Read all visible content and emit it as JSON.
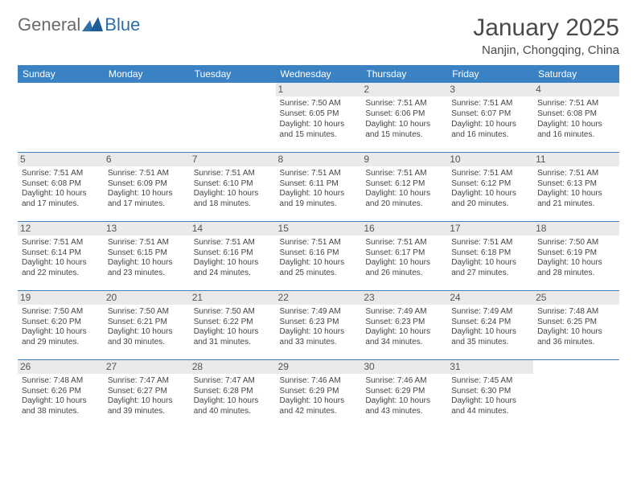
{
  "logo": {
    "general": "General",
    "blue": "Blue"
  },
  "title": "January 2025",
  "location": "Nanjin, Chongqing, China",
  "colors": {
    "header_bg": "#3a82c4",
    "header_text": "#ffffff",
    "daynum_bg": "#eaeaea",
    "row_border": "#3a82c4",
    "logo_blue": "#2f6fa8",
    "logo_gray": "#6b6b6b"
  },
  "weekdays": [
    "Sunday",
    "Monday",
    "Tuesday",
    "Wednesday",
    "Thursday",
    "Friday",
    "Saturday"
  ],
  "weeks": [
    [
      {
        "day": "",
        "sunrise": "",
        "sunset": "",
        "daylight": ""
      },
      {
        "day": "",
        "sunrise": "",
        "sunset": "",
        "daylight": ""
      },
      {
        "day": "",
        "sunrise": "",
        "sunset": "",
        "daylight": ""
      },
      {
        "day": "1",
        "sunrise": "Sunrise: 7:50 AM",
        "sunset": "Sunset: 6:05 PM",
        "daylight": "Daylight: 10 hours and 15 minutes."
      },
      {
        "day": "2",
        "sunrise": "Sunrise: 7:51 AM",
        "sunset": "Sunset: 6:06 PM",
        "daylight": "Daylight: 10 hours and 15 minutes."
      },
      {
        "day": "3",
        "sunrise": "Sunrise: 7:51 AM",
        "sunset": "Sunset: 6:07 PM",
        "daylight": "Daylight: 10 hours and 16 minutes."
      },
      {
        "day": "4",
        "sunrise": "Sunrise: 7:51 AM",
        "sunset": "Sunset: 6:08 PM",
        "daylight": "Daylight: 10 hours and 16 minutes."
      }
    ],
    [
      {
        "day": "5",
        "sunrise": "Sunrise: 7:51 AM",
        "sunset": "Sunset: 6:08 PM",
        "daylight": "Daylight: 10 hours and 17 minutes."
      },
      {
        "day": "6",
        "sunrise": "Sunrise: 7:51 AM",
        "sunset": "Sunset: 6:09 PM",
        "daylight": "Daylight: 10 hours and 17 minutes."
      },
      {
        "day": "7",
        "sunrise": "Sunrise: 7:51 AM",
        "sunset": "Sunset: 6:10 PM",
        "daylight": "Daylight: 10 hours and 18 minutes."
      },
      {
        "day": "8",
        "sunrise": "Sunrise: 7:51 AM",
        "sunset": "Sunset: 6:11 PM",
        "daylight": "Daylight: 10 hours and 19 minutes."
      },
      {
        "day": "9",
        "sunrise": "Sunrise: 7:51 AM",
        "sunset": "Sunset: 6:12 PM",
        "daylight": "Daylight: 10 hours and 20 minutes."
      },
      {
        "day": "10",
        "sunrise": "Sunrise: 7:51 AM",
        "sunset": "Sunset: 6:12 PM",
        "daylight": "Daylight: 10 hours and 20 minutes."
      },
      {
        "day": "11",
        "sunrise": "Sunrise: 7:51 AM",
        "sunset": "Sunset: 6:13 PM",
        "daylight": "Daylight: 10 hours and 21 minutes."
      }
    ],
    [
      {
        "day": "12",
        "sunrise": "Sunrise: 7:51 AM",
        "sunset": "Sunset: 6:14 PM",
        "daylight": "Daylight: 10 hours and 22 minutes."
      },
      {
        "day": "13",
        "sunrise": "Sunrise: 7:51 AM",
        "sunset": "Sunset: 6:15 PM",
        "daylight": "Daylight: 10 hours and 23 minutes."
      },
      {
        "day": "14",
        "sunrise": "Sunrise: 7:51 AM",
        "sunset": "Sunset: 6:16 PM",
        "daylight": "Daylight: 10 hours and 24 minutes."
      },
      {
        "day": "15",
        "sunrise": "Sunrise: 7:51 AM",
        "sunset": "Sunset: 6:16 PM",
        "daylight": "Daylight: 10 hours and 25 minutes."
      },
      {
        "day": "16",
        "sunrise": "Sunrise: 7:51 AM",
        "sunset": "Sunset: 6:17 PM",
        "daylight": "Daylight: 10 hours and 26 minutes."
      },
      {
        "day": "17",
        "sunrise": "Sunrise: 7:51 AM",
        "sunset": "Sunset: 6:18 PM",
        "daylight": "Daylight: 10 hours and 27 minutes."
      },
      {
        "day": "18",
        "sunrise": "Sunrise: 7:50 AM",
        "sunset": "Sunset: 6:19 PM",
        "daylight": "Daylight: 10 hours and 28 minutes."
      }
    ],
    [
      {
        "day": "19",
        "sunrise": "Sunrise: 7:50 AM",
        "sunset": "Sunset: 6:20 PM",
        "daylight": "Daylight: 10 hours and 29 minutes."
      },
      {
        "day": "20",
        "sunrise": "Sunrise: 7:50 AM",
        "sunset": "Sunset: 6:21 PM",
        "daylight": "Daylight: 10 hours and 30 minutes."
      },
      {
        "day": "21",
        "sunrise": "Sunrise: 7:50 AM",
        "sunset": "Sunset: 6:22 PM",
        "daylight": "Daylight: 10 hours and 31 minutes."
      },
      {
        "day": "22",
        "sunrise": "Sunrise: 7:49 AM",
        "sunset": "Sunset: 6:23 PM",
        "daylight": "Daylight: 10 hours and 33 minutes."
      },
      {
        "day": "23",
        "sunrise": "Sunrise: 7:49 AM",
        "sunset": "Sunset: 6:23 PM",
        "daylight": "Daylight: 10 hours and 34 minutes."
      },
      {
        "day": "24",
        "sunrise": "Sunrise: 7:49 AM",
        "sunset": "Sunset: 6:24 PM",
        "daylight": "Daylight: 10 hours and 35 minutes."
      },
      {
        "day": "25",
        "sunrise": "Sunrise: 7:48 AM",
        "sunset": "Sunset: 6:25 PM",
        "daylight": "Daylight: 10 hours and 36 minutes."
      }
    ],
    [
      {
        "day": "26",
        "sunrise": "Sunrise: 7:48 AM",
        "sunset": "Sunset: 6:26 PM",
        "daylight": "Daylight: 10 hours and 38 minutes."
      },
      {
        "day": "27",
        "sunrise": "Sunrise: 7:47 AM",
        "sunset": "Sunset: 6:27 PM",
        "daylight": "Daylight: 10 hours and 39 minutes."
      },
      {
        "day": "28",
        "sunrise": "Sunrise: 7:47 AM",
        "sunset": "Sunset: 6:28 PM",
        "daylight": "Daylight: 10 hours and 40 minutes."
      },
      {
        "day": "29",
        "sunrise": "Sunrise: 7:46 AM",
        "sunset": "Sunset: 6:29 PM",
        "daylight": "Daylight: 10 hours and 42 minutes."
      },
      {
        "day": "30",
        "sunrise": "Sunrise: 7:46 AM",
        "sunset": "Sunset: 6:29 PM",
        "daylight": "Daylight: 10 hours and 43 minutes."
      },
      {
        "day": "31",
        "sunrise": "Sunrise: 7:45 AM",
        "sunset": "Sunset: 6:30 PM",
        "daylight": "Daylight: 10 hours and 44 minutes."
      },
      {
        "day": "",
        "sunrise": "",
        "sunset": "",
        "daylight": ""
      }
    ]
  ]
}
